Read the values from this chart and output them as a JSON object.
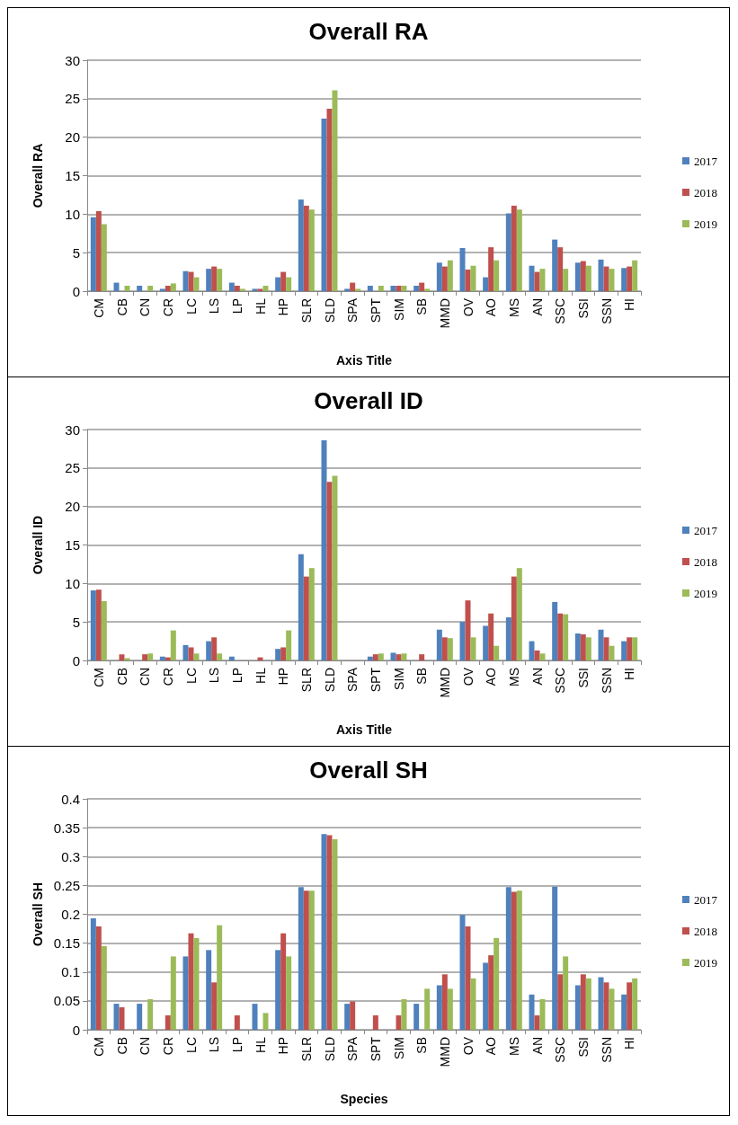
{
  "chart_data": [
    {
      "type": "bar",
      "title": "Overall RA",
      "xlabel": "Axis Title",
      "ylabel": "Overall RA",
      "categories": [
        "CM",
        "CB",
        "CN",
        "CR",
        "LC",
        "LS",
        "LP",
        "HL",
        "HP",
        "SLR",
        "SLD",
        "SPA",
        "SPT",
        "SIM",
        "SB",
        "MMD",
        "OV",
        "AO",
        "MS",
        "AN",
        "SSC",
        "SSI",
        "SSN",
        "HI"
      ],
      "series": [
        {
          "name": "2017",
          "color": "#4f81bd",
          "values": [
            9.6,
            1.1,
            0.7,
            0.3,
            2.6,
            2.9,
            1.1,
            0.3,
            1.8,
            11.9,
            22.4,
            0.3,
            0.7,
            0.7,
            0.7,
            3.7,
            5.6,
            1.8,
            10.1,
            3.3,
            6.7,
            3.7,
            4.1,
            3.0
          ]
        },
        {
          "name": "2018",
          "color": "#c0504d",
          "values": [
            10.4,
            0,
            0,
            0.7,
            2.5,
            3.2,
            0.7,
            0.3,
            2.5,
            11.1,
            23.7,
            1.1,
            0,
            0.7,
            1.1,
            3.2,
            2.8,
            5.7,
            11.1,
            2.5,
            5.7,
            3.9,
            3.2,
            3.2
          ]
        },
        {
          "name": "2019",
          "color": "#9bbb59",
          "values": [
            8.7,
            0.7,
            0.7,
            1.0,
            1.8,
            2.9,
            0.3,
            0.7,
            1.8,
            10.6,
            26.1,
            0.3,
            0.7,
            0.7,
            0.3,
            4.0,
            3.3,
            4.0,
            10.6,
            2.9,
            2.9,
            3.3,
            2.9,
            4.0
          ]
        }
      ],
      "ylim": [
        0,
        30
      ],
      "yticks": [
        0,
        5,
        10,
        15,
        20,
        25,
        30
      ],
      "grid": "y",
      "legend": "right"
    },
    {
      "type": "bar",
      "title": "Overall ID",
      "xlabel": "Axis Title",
      "ylabel": "Overall ID",
      "categories": [
        "CM",
        "CB",
        "CN",
        "CR",
        "LC",
        "LS",
        "LP",
        "HL",
        "HP",
        "SLR",
        "SLD",
        "SPA",
        "SPT",
        "SIM",
        "SB",
        "MMD",
        "OV",
        "AO",
        "MS",
        "AN",
        "SSC",
        "SSI",
        "SSN",
        "HI"
      ],
      "series": [
        {
          "name": "2017",
          "color": "#4f81bd",
          "values": [
            9.1,
            0,
            0,
            0.5,
            2.0,
            2.5,
            0.5,
            0,
            1.5,
            13.8,
            28.6,
            0,
            0.5,
            1.0,
            0,
            4.0,
            5.0,
            4.5,
            5.6,
            2.5,
            7.6,
            3.5,
            4.0,
            2.5
          ]
        },
        {
          "name": "2018",
          "color": "#c0504d",
          "values": [
            9.2,
            0.8,
            0.8,
            0.4,
            1.7,
            3.0,
            0,
            0.4,
            1.7,
            10.9,
            23.2,
            0,
            0.8,
            0.8,
            0.8,
            3.0,
            7.8,
            6.1,
            10.9,
            1.3,
            6.1,
            3.4,
            3.0,
            3.0
          ]
        },
        {
          "name": "2019",
          "color": "#9bbb59",
          "values": [
            7.7,
            0.3,
            0.9,
            3.9,
            0.9,
            0.9,
            0,
            0,
            3.9,
            12.0,
            24.0,
            0,
            0.9,
            0.9,
            0,
            2.9,
            3.0,
            1.9,
            12.0,
            0.9,
            6.0,
            3.0,
            1.9,
            3.0
          ]
        }
      ],
      "ylim": [
        0,
        30
      ],
      "yticks": [
        0,
        5,
        10,
        15,
        20,
        25,
        30
      ],
      "grid": "y",
      "legend": "right"
    },
    {
      "type": "bar",
      "title": "Overall SH",
      "xlabel": "Species",
      "ylabel": "Overall SH",
      "categories": [
        "CM",
        "CB",
        "CN",
        "CR",
        "LC",
        "LS",
        "LP",
        "HL",
        "HP",
        "SLR",
        "SLD",
        "SPA",
        "SPT",
        "SIM",
        "SB",
        "MMD",
        "OV",
        "AO",
        "MS",
        "AN",
        "SSC",
        "SSI",
        "SSN",
        "HI"
      ],
      "series": [
        {
          "name": "2017",
          "color": "#4f81bd",
          "values": [
            0.193,
            0.045,
            0.045,
            0,
            0.127,
            0.138,
            0,
            0.045,
            0.138,
            0.247,
            0.339,
            0.045,
            0,
            0,
            0.045,
            0.077,
            0.199,
            0.116,
            0.247,
            0.061,
            0.248,
            0.077,
            0.091,
            0.061
          ]
        },
        {
          "name": "2018",
          "color": "#c0504d",
          "values": [
            0.179,
            0.039,
            0,
            0.025,
            0.167,
            0.082,
            0.025,
            0,
            0.167,
            0.241,
            0.337,
            0.049,
            0.025,
            0.025,
            0,
            0.096,
            0.179,
            0.129,
            0.239,
            0.025,
            0.096,
            0.096,
            0.082,
            0.082
          ]
        },
        {
          "name": "2019",
          "color": "#9bbb59",
          "values": [
            0.145,
            0,
            0.053,
            0.127,
            0.159,
            0.181,
            0,
            0.029,
            0.127,
            0.241,
            0.33,
            0,
            0,
            0.053,
            0.071,
            0.071,
            0.089,
            0.159,
            0.241,
            0.053,
            0.127,
            0.089,
            0.071,
            0.089
          ]
        }
      ],
      "ylim": [
        0,
        0.4
      ],
      "yticks": [
        0,
        0.05,
        0.1,
        0.15,
        0.2,
        0.25,
        0.3,
        0.35,
        0.4
      ],
      "grid": "y",
      "legend": "right"
    }
  ]
}
